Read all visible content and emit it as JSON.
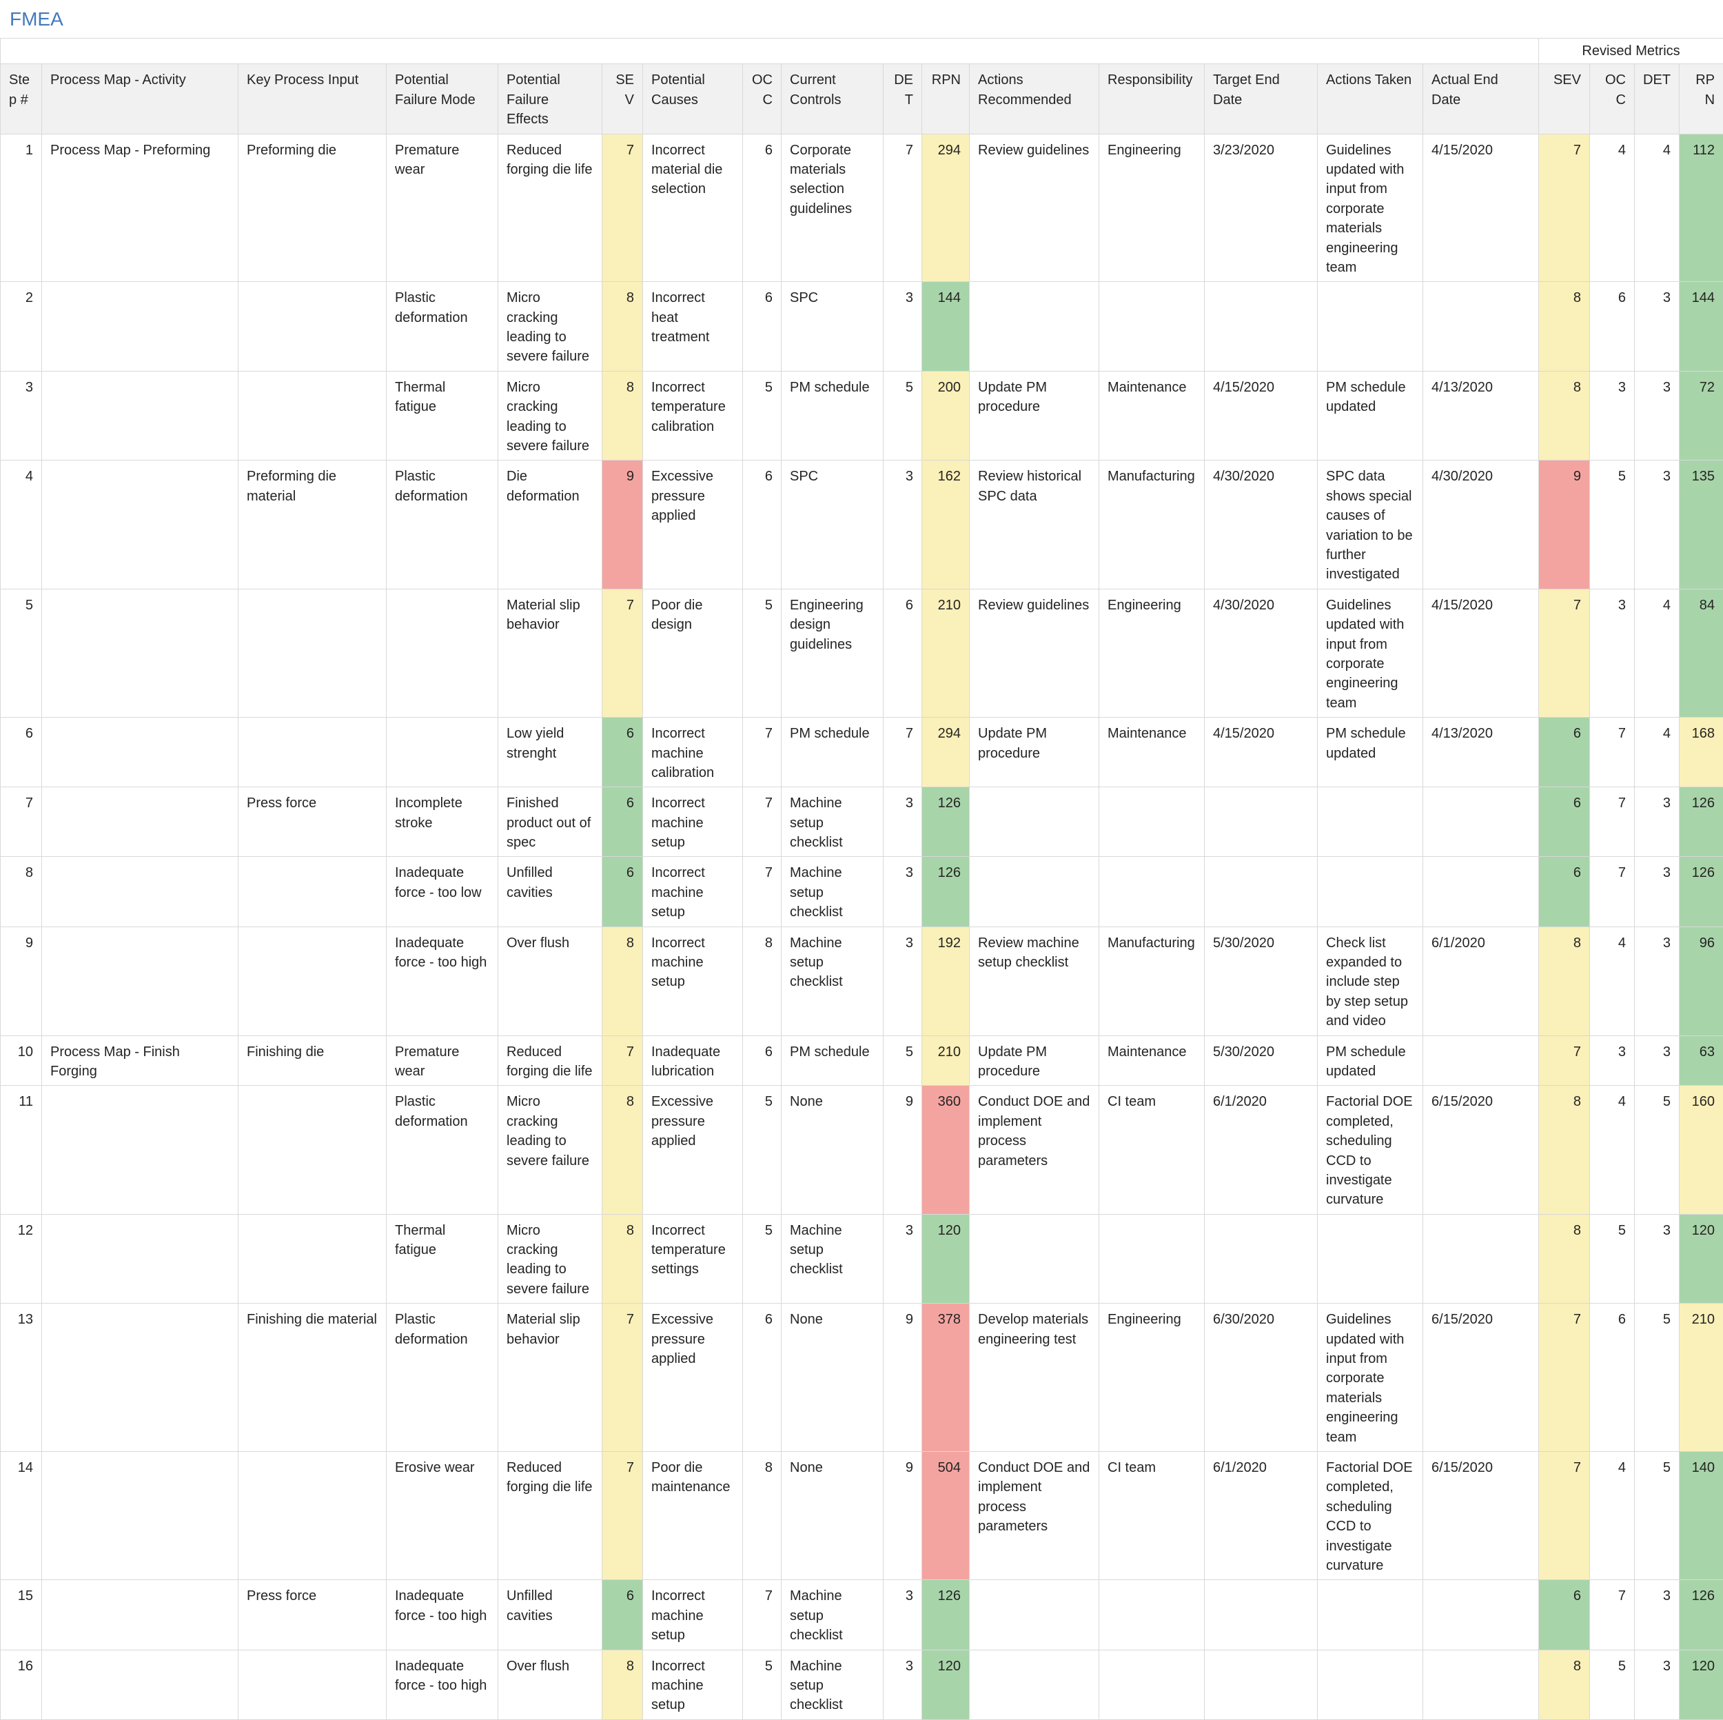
{
  "title": "FMEA",
  "palette": {
    "green": "#A8D4AA",
    "yellow": "#FAF0B9",
    "red": "#F4A4A0"
  },
  "header_bg": "#F1F1F1",
  "title_color": "#4379BF",
  "table": {
    "group_header": "Revised Metrics",
    "columns": [
      {
        "key": "step",
        "label": "Step #",
        "align": "right",
        "h_align": "left"
      },
      {
        "key": "activity",
        "label": "Process Map - Activity",
        "align": "left",
        "h_align": "left"
      },
      {
        "key": "key_input",
        "label": "Key Process Input",
        "align": "left",
        "h_align": "left"
      },
      {
        "key": "failure_mode",
        "label": "Potential Failure Mode",
        "align": "left",
        "h_align": "left"
      },
      {
        "key": "failure_effects",
        "label": "Potential Failure Effects",
        "align": "left",
        "h_align": "left"
      },
      {
        "key": "sev",
        "label": "SEV",
        "align": "right",
        "h_align": "right",
        "bg": "sev_bg"
      },
      {
        "key": "causes",
        "label": "Potential Causes",
        "align": "left",
        "h_align": "left"
      },
      {
        "key": "occ",
        "label": "OCC",
        "align": "right",
        "h_align": "right"
      },
      {
        "key": "controls",
        "label": "Current Controls",
        "align": "left",
        "h_align": "left"
      },
      {
        "key": "det",
        "label": "DET",
        "align": "right",
        "h_align": "right"
      },
      {
        "key": "rpn",
        "label": "RPN",
        "align": "right",
        "h_align": "right",
        "bg": "rpn_bg"
      },
      {
        "key": "actions_recommended",
        "label": "Actions Recommended",
        "align": "left",
        "h_align": "left"
      },
      {
        "key": "responsibility",
        "label": "Responsibility",
        "align": "left",
        "h_align": "left"
      },
      {
        "key": "target_end_date",
        "label": "Target End Date",
        "align": "left",
        "h_align": "left"
      },
      {
        "key": "actions_taken",
        "label": "Actions Taken",
        "align": "left",
        "h_align": "left"
      },
      {
        "key": "actual_end_date",
        "label": "Actual End Date",
        "align": "left",
        "h_align": "left"
      },
      {
        "key": "r_sev",
        "label": "SEV",
        "align": "right",
        "h_align": "right",
        "bg": "r_sev_bg"
      },
      {
        "key": "r_occ",
        "label": "OCC",
        "align": "right",
        "h_align": "right"
      },
      {
        "key": "r_det",
        "label": "DET",
        "align": "right",
        "h_align": "right"
      },
      {
        "key": "r_rpn",
        "label": "RPN",
        "align": "right",
        "h_align": "right",
        "bg": "r_rpn_bg"
      }
    ],
    "rows": [
      {
        "step": 1,
        "activity": "Process Map - Preforming",
        "key_input": "Preforming die",
        "failure_mode": "Premature wear",
        "failure_effects": "Reduced forging die life",
        "sev": 7,
        "sev_bg": "yellow",
        "causes": "Incorrect material die selection",
        "occ": 6,
        "controls": "Corporate materials selection guidelines",
        "det": 7,
        "rpn": 294,
        "rpn_bg": "yellow",
        "actions_recommended": "Review guidelines",
        "responsibility": "Engineering",
        "target_end_date": "3/23/2020",
        "actions_taken": "Guidelines updated with input from corporate materials engineering team",
        "actual_end_date": "4/15/2020",
        "r_sev": 7,
        "r_sev_bg": "yellow",
        "r_occ": 4,
        "r_det": 4,
        "r_rpn": 112,
        "r_rpn_bg": "green"
      },
      {
        "step": 2,
        "activity": "",
        "key_input": "",
        "failure_mode": "Plastic deformation",
        "failure_effects": "Micro cracking leading to severe failure",
        "sev": 8,
        "sev_bg": "yellow",
        "causes": "Incorrect heat treatment",
        "occ": 6,
        "controls": "SPC",
        "det": 3,
        "rpn": 144,
        "rpn_bg": "green",
        "actions_recommended": "",
        "responsibility": "",
        "target_end_date": "",
        "actions_taken": "",
        "actual_end_date": "",
        "r_sev": 8,
        "r_sev_bg": "yellow",
        "r_occ": 6,
        "r_det": 3,
        "r_rpn": 144,
        "r_rpn_bg": "green"
      },
      {
        "step": 3,
        "activity": "",
        "key_input": "",
        "failure_mode": "Thermal fatigue",
        "failure_effects": "Micro cracking leading to severe failure",
        "sev": 8,
        "sev_bg": "yellow",
        "causes": "Incorrect temperature calibration",
        "occ": 5,
        "controls": "PM schedule",
        "det": 5,
        "rpn": 200,
        "rpn_bg": "yellow",
        "actions_recommended": "Update PM procedure",
        "responsibility": "Maintenance",
        "target_end_date": "4/15/2020",
        "actions_taken": "PM schedule updated",
        "actual_end_date": "4/13/2020",
        "r_sev": 8,
        "r_sev_bg": "yellow",
        "r_occ": 3,
        "r_det": 3,
        "r_rpn": 72,
        "r_rpn_bg": "green"
      },
      {
        "step": 4,
        "activity": "",
        "key_input": "Preforming die material",
        "failure_mode": "Plastic deformation",
        "failure_effects": "Die deformation",
        "sev": 9,
        "sev_bg": "red",
        "causes": "Excessive pressure applied",
        "occ": 6,
        "controls": "SPC",
        "det": 3,
        "rpn": 162,
        "rpn_bg": "yellow",
        "actions_recommended": "Review historical SPC data",
        "responsibility": "Manufacturing",
        "target_end_date": "4/30/2020",
        "actions_taken": "SPC data shows special causes of variation to be further investigated",
        "actual_end_date": "4/30/2020",
        "r_sev": 9,
        "r_sev_bg": "red",
        "r_occ": 5,
        "r_det": 3,
        "r_rpn": 135,
        "r_rpn_bg": "green"
      },
      {
        "step": 5,
        "activity": "",
        "key_input": "",
        "failure_mode": "",
        "failure_effects": "Material slip behavior",
        "sev": 7,
        "sev_bg": "yellow",
        "causes": "Poor die design",
        "occ": 5,
        "controls": "Engineering design guidelines",
        "det": 6,
        "rpn": 210,
        "rpn_bg": "yellow",
        "actions_recommended": "Review guidelines",
        "responsibility": "Engineering",
        "target_end_date": "4/30/2020",
        "actions_taken": "Guidelines updated with input from corporate engineering team",
        "actual_end_date": "4/15/2020",
        "r_sev": 7,
        "r_sev_bg": "yellow",
        "r_occ": 3,
        "r_det": 4,
        "r_rpn": 84,
        "r_rpn_bg": "green"
      },
      {
        "step": 6,
        "activity": "",
        "key_input": "",
        "failure_mode": "",
        "failure_effects": "Low yield strenght",
        "sev": 6,
        "sev_bg": "green",
        "causes": "Incorrect machine calibration",
        "occ": 7,
        "controls": "PM schedule",
        "det": 7,
        "rpn": 294,
        "rpn_bg": "yellow",
        "actions_recommended": "Update PM procedure",
        "responsibility": "Maintenance",
        "target_end_date": "4/15/2020",
        "actions_taken": "PM schedule updated",
        "actual_end_date": "4/13/2020",
        "r_sev": 6,
        "r_sev_bg": "green",
        "r_occ": 7,
        "r_det": 4,
        "r_rpn": 168,
        "r_rpn_bg": "yellow"
      },
      {
        "step": 7,
        "activity": "",
        "key_input": "Press force",
        "failure_mode": "Incomplete stroke",
        "failure_effects": "Finished product out of spec",
        "sev": 6,
        "sev_bg": "green",
        "causes": "Incorrect machine setup",
        "occ": 7,
        "controls": "Machine setup checklist",
        "det": 3,
        "rpn": 126,
        "rpn_bg": "green",
        "actions_recommended": "",
        "responsibility": "",
        "target_end_date": "",
        "actions_taken": "",
        "actual_end_date": "",
        "r_sev": 6,
        "r_sev_bg": "green",
        "r_occ": 7,
        "r_det": 3,
        "r_rpn": 126,
        "r_rpn_bg": "green"
      },
      {
        "step": 8,
        "activity": "",
        "key_input": "",
        "failure_mode": "Inadequate force - too low",
        "failure_effects": "Unfilled cavities",
        "sev": 6,
        "sev_bg": "green",
        "causes": "Incorrect machine setup",
        "occ": 7,
        "controls": "Machine setup checklist",
        "det": 3,
        "rpn": 126,
        "rpn_bg": "green",
        "actions_recommended": "",
        "responsibility": "",
        "target_end_date": "",
        "actions_taken": "",
        "actual_end_date": "",
        "r_sev": 6,
        "r_sev_bg": "green",
        "r_occ": 7,
        "r_det": 3,
        "r_rpn": 126,
        "r_rpn_bg": "green"
      },
      {
        "step": 9,
        "activity": "",
        "key_input": "",
        "failure_mode": "Inadequate force - too high",
        "failure_effects": "Over flush",
        "sev": 8,
        "sev_bg": "yellow",
        "causes": "Incorrect machine setup",
        "occ": 8,
        "controls": "Machine setup checklist",
        "det": 3,
        "rpn": 192,
        "rpn_bg": "yellow",
        "actions_recommended": "Review machine setup checklist",
        "responsibility": "Manufacturing",
        "target_end_date": "5/30/2020",
        "actions_taken": "Check list expanded to include step by step setup and video",
        "actual_end_date": "6/1/2020",
        "r_sev": 8,
        "r_sev_bg": "yellow",
        "r_occ": 4,
        "r_det": 3,
        "r_rpn": 96,
        "r_rpn_bg": "green"
      },
      {
        "step": 10,
        "activity": "Process Map - Finish Forging",
        "key_input": "Finishing die",
        "failure_mode": "Premature wear",
        "failure_effects": "Reduced forging die life",
        "sev": 7,
        "sev_bg": "yellow",
        "causes": "Inadequate lubrication",
        "occ": 6,
        "controls": "PM schedule",
        "det": 5,
        "rpn": 210,
        "rpn_bg": "yellow",
        "actions_recommended": "Update PM procedure",
        "responsibility": "Maintenance",
        "target_end_date": "5/30/2020",
        "actions_taken": "PM schedule updated",
        "actual_end_date": "",
        "r_sev": 7,
        "r_sev_bg": "yellow",
        "r_occ": 3,
        "r_det": 3,
        "r_rpn": 63,
        "r_rpn_bg": "green"
      },
      {
        "step": 11,
        "activity": "",
        "key_input": "",
        "failure_mode": "Plastic deformation",
        "failure_effects": "Micro cracking leading to severe failure",
        "sev": 8,
        "sev_bg": "yellow",
        "causes": "Excessive pressure applied",
        "occ": 5,
        "controls": "None",
        "det": 9,
        "rpn": 360,
        "rpn_bg": "red",
        "actions_recommended": "Conduct DOE and implement process parameters",
        "responsibility": "CI team",
        "target_end_date": "6/1/2020",
        "actions_taken": "Factorial DOE completed, scheduling CCD to investigate curvature",
        "actual_end_date": "6/15/2020",
        "r_sev": 8,
        "r_sev_bg": "yellow",
        "r_occ": 4,
        "r_det": 5,
        "r_rpn": 160,
        "r_rpn_bg": "yellow"
      },
      {
        "step": 12,
        "activity": "",
        "key_input": "",
        "failure_mode": "Thermal fatigue",
        "failure_effects": "Micro cracking leading to severe failure",
        "sev": 8,
        "sev_bg": "yellow",
        "causes": "Incorrect temperature settings",
        "occ": 5,
        "controls": "Machine setup checklist",
        "det": 3,
        "rpn": 120,
        "rpn_bg": "green",
        "actions_recommended": "",
        "responsibility": "",
        "target_end_date": "",
        "actions_taken": "",
        "actual_end_date": "",
        "r_sev": 8,
        "r_sev_bg": "yellow",
        "r_occ": 5,
        "r_det": 3,
        "r_rpn": 120,
        "r_rpn_bg": "green"
      },
      {
        "step": 13,
        "activity": "",
        "key_input": "Finishing die material",
        "failure_mode": "Plastic deformation",
        "failure_effects": "Material slip behavior",
        "sev": 7,
        "sev_bg": "yellow",
        "causes": "Excessive pressure applied",
        "occ": 6,
        "controls": "None",
        "det": 9,
        "rpn": 378,
        "rpn_bg": "red",
        "actions_recommended": "Develop materials engineering test",
        "responsibility": "Engineering",
        "target_end_date": "6/30/2020",
        "actions_taken": "Guidelines updated with input from corporate materials engineering team",
        "actual_end_date": "6/15/2020",
        "r_sev": 7,
        "r_sev_bg": "yellow",
        "r_occ": 6,
        "r_det": 5,
        "r_rpn": 210,
        "r_rpn_bg": "yellow"
      },
      {
        "step": 14,
        "activity": "",
        "key_input": "",
        "failure_mode": "Erosive wear",
        "failure_effects": "Reduced forging die life",
        "sev": 7,
        "sev_bg": "yellow",
        "causes": "Poor die maintenance",
        "occ": 8,
        "controls": "None",
        "det": 9,
        "rpn": 504,
        "rpn_bg": "red",
        "actions_recommended": "Conduct DOE and implement process parameters",
        "responsibility": "CI team",
        "target_end_date": "6/1/2020",
        "actions_taken": "Factorial DOE completed, scheduling CCD to investigate curvature",
        "actual_end_date": "6/15/2020",
        "r_sev": 7,
        "r_sev_bg": "yellow",
        "r_occ": 4,
        "r_det": 5,
        "r_rpn": 140,
        "r_rpn_bg": "green"
      },
      {
        "step": 15,
        "activity": "",
        "key_input": "Press force",
        "failure_mode": "Inadequate force - too high",
        "failure_effects": "Unfilled cavities",
        "sev": 6,
        "sev_bg": "green",
        "causes": "Incorrect machine setup",
        "occ": 7,
        "controls": "Machine setup checklist",
        "det": 3,
        "rpn": 126,
        "rpn_bg": "green",
        "actions_recommended": "",
        "responsibility": "",
        "target_end_date": "",
        "actions_taken": "",
        "actual_end_date": "",
        "r_sev": 6,
        "r_sev_bg": "green",
        "r_occ": 7,
        "r_det": 3,
        "r_rpn": 126,
        "r_rpn_bg": "green"
      },
      {
        "step": 16,
        "activity": "",
        "key_input": "",
        "failure_mode": "Inadequate force - too high",
        "failure_effects": "Over flush",
        "sev": 8,
        "sev_bg": "yellow",
        "causes": "Incorrect machine setup",
        "occ": 5,
        "controls": "Machine setup checklist",
        "det": 3,
        "rpn": 120,
        "rpn_bg": "green",
        "actions_recommended": "",
        "responsibility": "",
        "target_end_date": "",
        "actions_taken": "",
        "actual_end_date": "",
        "r_sev": 8,
        "r_sev_bg": "yellow",
        "r_occ": 5,
        "r_det": 3,
        "r_rpn": 120,
        "r_rpn_bg": "green"
      }
    ]
  }
}
